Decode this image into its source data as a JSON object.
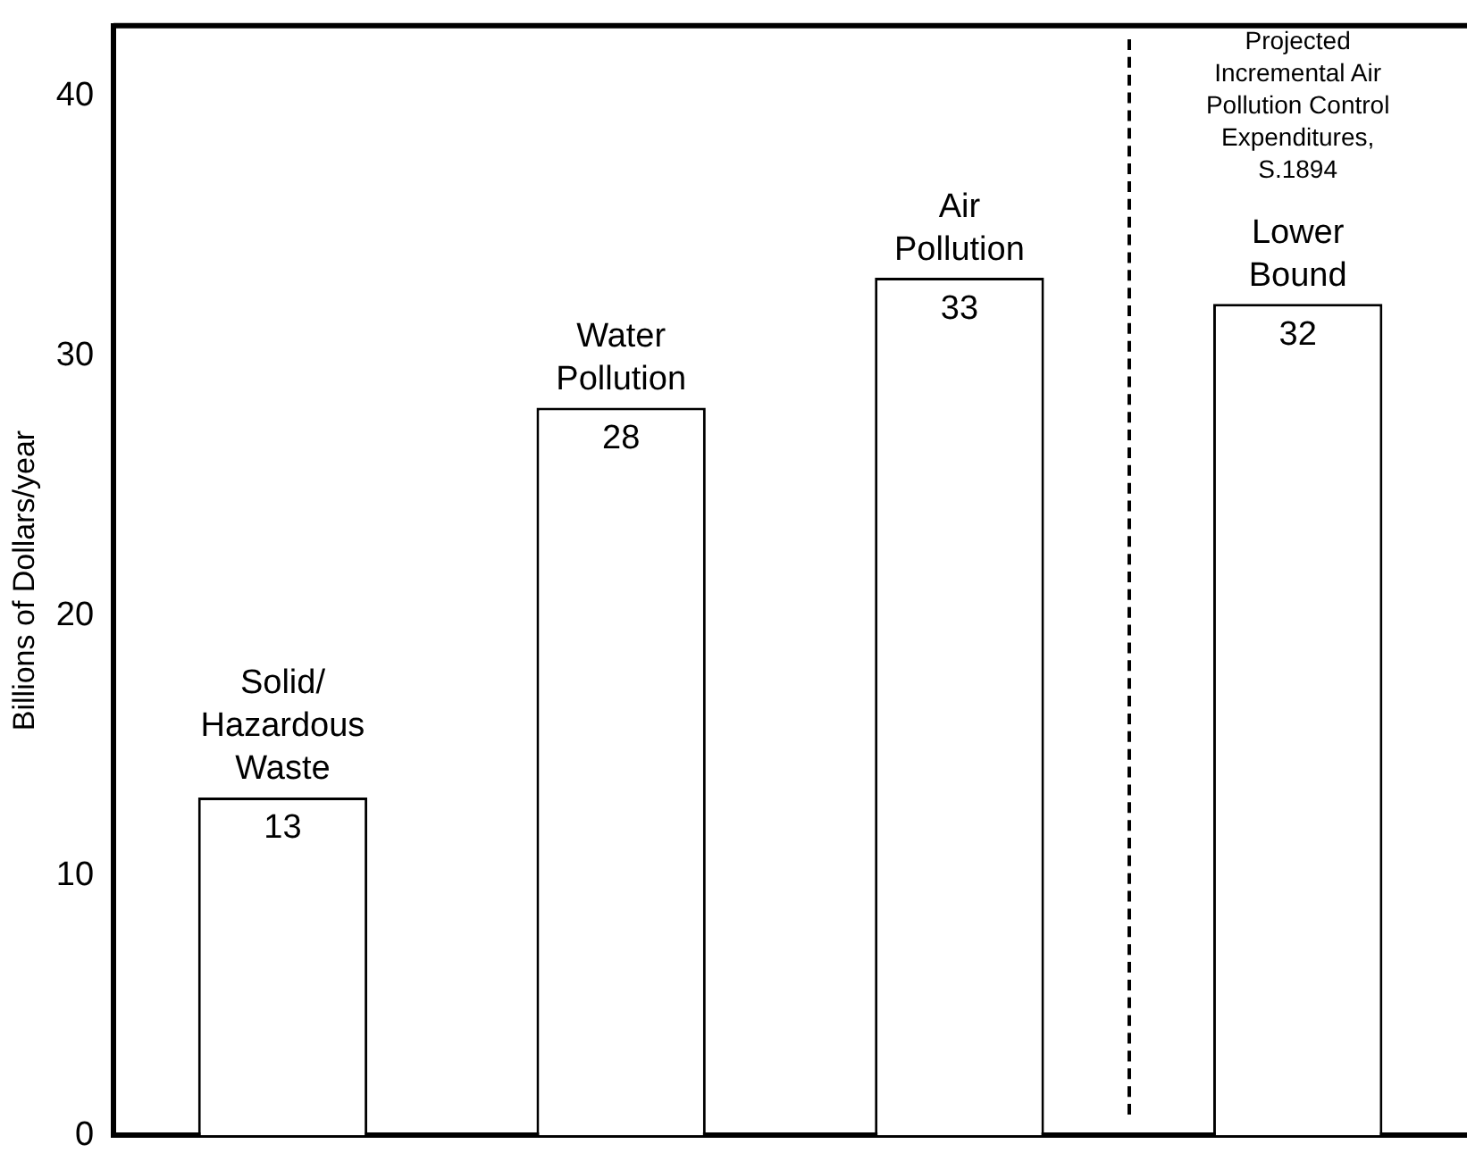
{
  "chart_data": {
    "type": "bar",
    "ylabel": "Billions of Dollars/year",
    "categories": [
      "Solid/\nHazardous\nWaste",
      "Water\nPollution",
      "Air\nPollution",
      "Lower\nBound"
    ],
    "values": [
      13,
      28,
      33,
      32
    ],
    "color": "#ffffff",
    "ylim": [
      0,
      42.7
    ],
    "yticks": [
      0,
      10,
      20,
      30,
      40
    ],
    "grid": false,
    "legend": false,
    "data_labels": true,
    "annotations": [
      "Projected\nIncremental Air\nPollution Control\nExpenditures,\nS.1894"
    ]
  }
}
